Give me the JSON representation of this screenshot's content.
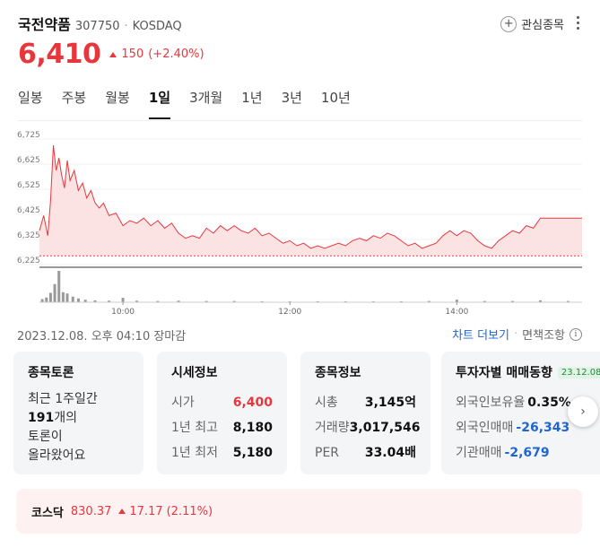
{
  "stock": {
    "name": "국전약품",
    "code": "307750",
    "separator": "·",
    "market": "KOSDAQ",
    "price": "6,410",
    "change": "150",
    "change_pct": "(+2.40%)",
    "direction": "up"
  },
  "header_actions": {
    "favorite_label": "관심종목",
    "plus_glyph": "+",
    "more_icon": "more-vertical-icon"
  },
  "tabs": [
    {
      "label": "일봉",
      "active": false
    },
    {
      "label": "주봉",
      "active": false
    },
    {
      "label": "월봉",
      "active": false
    },
    {
      "label": "1일",
      "active": true
    },
    {
      "label": "3개월",
      "active": false
    },
    {
      "label": "1년",
      "active": false
    },
    {
      "label": "3년",
      "active": false
    },
    {
      "label": "10년",
      "active": false
    }
  ],
  "chart_data": {
    "type": "area",
    "title": "",
    "y_ticks": [
      "6,725",
      "6,625",
      "6,525",
      "6,425",
      "6,325",
      "6,225"
    ],
    "ylim": [
      6225,
      6725
    ],
    "x_ticks": [
      "10:00",
      "12:00",
      "14:00"
    ],
    "xlim": [
      "09:00",
      "15:30"
    ],
    "reference_line": 6260,
    "grid": true,
    "colors": {
      "line": "#e8363d",
      "fill": "#fbe3e3",
      "volume": "#999999"
    },
    "price_series": [
      {
        "t": "09:00",
        "y": 6360
      },
      {
        "t": "09:03",
        "y": 6420
      },
      {
        "t": "09:06",
        "y": 6340
      },
      {
        "t": "09:08",
        "y": 6480
      },
      {
        "t": "09:10",
        "y": 6700
      },
      {
        "t": "09:12",
        "y": 6600
      },
      {
        "t": "09:14",
        "y": 6650
      },
      {
        "t": "09:16",
        "y": 6580
      },
      {
        "t": "09:18",
        "y": 6530
      },
      {
        "t": "09:20",
        "y": 6640
      },
      {
        "t": "09:22",
        "y": 6560
      },
      {
        "t": "09:25",
        "y": 6600
      },
      {
        "t": "09:28",
        "y": 6520
      },
      {
        "t": "09:31",
        "y": 6550
      },
      {
        "t": "09:34",
        "y": 6490
      },
      {
        "t": "09:37",
        "y": 6520
      },
      {
        "t": "09:40",
        "y": 6470
      },
      {
        "t": "09:43",
        "y": 6450
      },
      {
        "t": "09:46",
        "y": 6470
      },
      {
        "t": "09:50",
        "y": 6420
      },
      {
        "t": "09:55",
        "y": 6430
      },
      {
        "t": "10:00",
        "y": 6380
      },
      {
        "t": "10:05",
        "y": 6400
      },
      {
        "t": "10:10",
        "y": 6390
      },
      {
        "t": "10:15",
        "y": 6410
      },
      {
        "t": "10:20",
        "y": 6380
      },
      {
        "t": "10:25",
        "y": 6400
      },
      {
        "t": "10:30",
        "y": 6370
      },
      {
        "t": "10:35",
        "y": 6390
      },
      {
        "t": "10:40",
        "y": 6350
      },
      {
        "t": "10:45",
        "y": 6330
      },
      {
        "t": "10:50",
        "y": 6340
      },
      {
        "t": "10:55",
        "y": 6330
      },
      {
        "t": "11:00",
        "y": 6370
      },
      {
        "t": "11:05",
        "y": 6350
      },
      {
        "t": "11:10",
        "y": 6380
      },
      {
        "t": "11:15",
        "y": 6360
      },
      {
        "t": "11:20",
        "y": 6380
      },
      {
        "t": "11:25",
        "y": 6360
      },
      {
        "t": "11:30",
        "y": 6350
      },
      {
        "t": "11:35",
        "y": 6370
      },
      {
        "t": "11:40",
        "y": 6340
      },
      {
        "t": "11:45",
        "y": 6350
      },
      {
        "t": "11:50",
        "y": 6330
      },
      {
        "t": "11:55",
        "y": 6310
      },
      {
        "t": "12:00",
        "y": 6320
      },
      {
        "t": "12:05",
        "y": 6300
      },
      {
        "t": "12:10",
        "y": 6310
      },
      {
        "t": "12:15",
        "y": 6290
      },
      {
        "t": "12:20",
        "y": 6300
      },
      {
        "t": "12:25",
        "y": 6290
      },
      {
        "t": "12:30",
        "y": 6300
      },
      {
        "t": "12:35",
        "y": 6310
      },
      {
        "t": "12:40",
        "y": 6300
      },
      {
        "t": "12:45",
        "y": 6320
      },
      {
        "t": "12:50",
        "y": 6330
      },
      {
        "t": "12:55",
        "y": 6320
      },
      {
        "t": "13:00",
        "y": 6340
      },
      {
        "t": "13:05",
        "y": 6330
      },
      {
        "t": "13:10",
        "y": 6350
      },
      {
        "t": "13:15",
        "y": 6340
      },
      {
        "t": "13:20",
        "y": 6320
      },
      {
        "t": "13:25",
        "y": 6300
      },
      {
        "t": "13:30",
        "y": 6310
      },
      {
        "t": "13:35",
        "y": 6290
      },
      {
        "t": "13:40",
        "y": 6300
      },
      {
        "t": "13:45",
        "y": 6310
      },
      {
        "t": "13:50",
        "y": 6340
      },
      {
        "t": "13:55",
        "y": 6360
      },
      {
        "t": "14:00",
        "y": 6340
      },
      {
        "t": "14:05",
        "y": 6360
      },
      {
        "t": "14:10",
        "y": 6350
      },
      {
        "t": "14:15",
        "y": 6320
      },
      {
        "t": "14:20",
        "y": 6300
      },
      {
        "t": "14:25",
        "y": 6290
      },
      {
        "t": "14:30",
        "y": 6320
      },
      {
        "t": "14:35",
        "y": 6340
      },
      {
        "t": "14:40",
        "y": 6360
      },
      {
        "t": "14:45",
        "y": 6350
      },
      {
        "t": "14:50",
        "y": 6380
      },
      {
        "t": "14:55",
        "y": 6370
      },
      {
        "t": "15:00",
        "y": 6410
      },
      {
        "t": "15:10",
        "y": 6410
      },
      {
        "t": "15:20",
        "y": 6410
      },
      {
        "t": "15:30",
        "y": 6410
      }
    ],
    "volume_series": [
      {
        "t": "09:02",
        "v": 10
      },
      {
        "t": "09:05",
        "v": 15
      },
      {
        "t": "09:08",
        "v": 30
      },
      {
        "t": "09:11",
        "v": 58
      },
      {
        "t": "09:14",
        "v": 100
      },
      {
        "t": "09:17",
        "v": 32
      },
      {
        "t": "09:20",
        "v": 28
      },
      {
        "t": "09:24",
        "v": 18
      },
      {
        "t": "09:28",
        "v": 12
      },
      {
        "t": "09:33",
        "v": 8
      },
      {
        "t": "09:40",
        "v": 6
      },
      {
        "t": "09:50",
        "v": 5
      },
      {
        "t": "10:00",
        "v": 14
      },
      {
        "t": "10:10",
        "v": 5
      },
      {
        "t": "10:25",
        "v": 4
      },
      {
        "t": "10:40",
        "v": 5
      },
      {
        "t": "11:00",
        "v": 4
      },
      {
        "t": "11:20",
        "v": 4
      },
      {
        "t": "11:40",
        "v": 3
      },
      {
        "t": "12:00",
        "v": 3
      },
      {
        "t": "12:20",
        "v": 3
      },
      {
        "t": "12:40",
        "v": 3
      },
      {
        "t": "13:00",
        "v": 3
      },
      {
        "t": "13:20",
        "v": 3
      },
      {
        "t": "13:40",
        "v": 4
      },
      {
        "t": "14:00",
        "v": 8
      },
      {
        "t": "14:20",
        "v": 4
      },
      {
        "t": "14:40",
        "v": 4
      },
      {
        "t": "15:00",
        "v": 6
      },
      {
        "t": "15:20",
        "v": 4
      }
    ]
  },
  "meta": {
    "timestamp": "2023.12.08. 오후 04:10 장마감",
    "chart_more": "차트 더보기",
    "dot": "·",
    "disclaimer": "면책조항",
    "info_glyph": "i"
  },
  "cards": {
    "discussion": {
      "title": "종목토론",
      "line1": "최근 1주일간",
      "count": "191",
      "count_suffix": "개의",
      "line3": "토론이",
      "line4": "올라왔어요"
    },
    "quote": {
      "title": "시세정보",
      "rows": [
        {
          "k": "시가",
          "v": "6,400",
          "color": "red"
        },
        {
          "k": "1년 최고",
          "v": "8,180",
          "color": "default"
        },
        {
          "k": "1년 최저",
          "v": "5,180",
          "color": "default"
        }
      ]
    },
    "info": {
      "title": "종목정보",
      "rows": [
        {
          "k": "시총",
          "v": "3,145억"
        },
        {
          "k": "거래량",
          "v": "3,017,546"
        },
        {
          "k": "PER",
          "v": "33.04배"
        }
      ]
    },
    "investor": {
      "title": "투자자별 매매동향",
      "date": "23.12.08",
      "rows": [
        {
          "k": "외국인보유율",
          "v": "0.35%",
          "color": "default"
        },
        {
          "k": "외국인매매",
          "v": "-26,343",
          "color": "blue"
        },
        {
          "k": "기관매매",
          "v": "-2,679",
          "color": "blue"
        }
      ]
    }
  },
  "next_glyph": "›",
  "index": {
    "name": "코스닥",
    "value": "830.37",
    "change": "17.17",
    "change_pct": "(2.11%)"
  }
}
